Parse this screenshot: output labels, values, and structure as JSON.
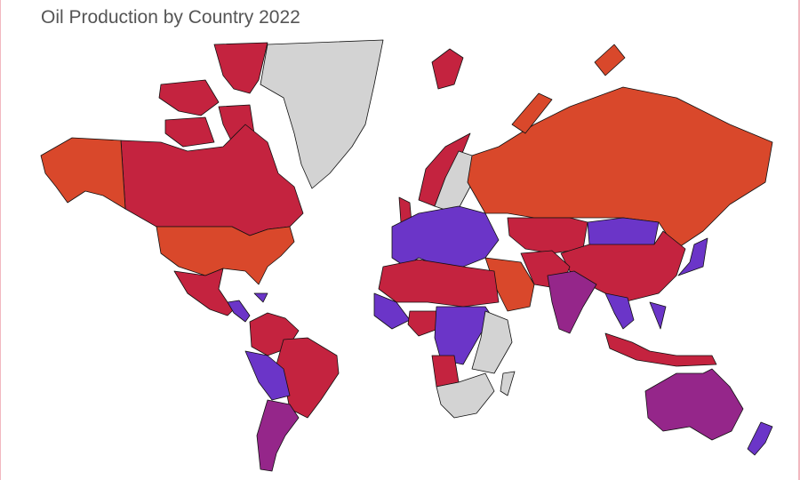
{
  "title": "Oil Production by Country 2022"
}
